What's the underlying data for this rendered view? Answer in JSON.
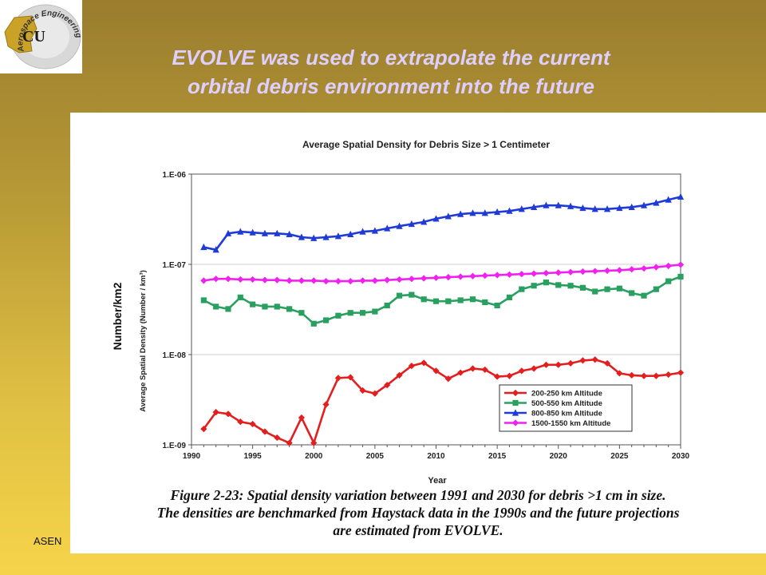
{
  "slide": {
    "title_line1": "EVOLVE was used to extrapolate the current",
    "title_line2": "orbital debris environment into the future",
    "footer_text": "ASEN",
    "logo_text": "Aerospace Engineering",
    "logo_monogram": "CU",
    "overlay_ylabel": "Number/km2"
  },
  "caption": {
    "line1": "Figure 2-23:  Spatial density variation between 1991 and 2030 for debris >1 cm in size.",
    "line2": "The densities are benchmarked from Haystack data in the 1990s and the future projections",
    "line3": "are estimated from EVOLVE."
  },
  "chart_data": {
    "type": "line",
    "title": "Average Spatial Density for Debris Size > 1 Centimeter",
    "xlabel": "Year",
    "ylabel": "Average Spatial Density (Number / km³)",
    "xlim": [
      1990,
      2030
    ],
    "ylim": [
      1e-09,
      1e-06
    ],
    "yscale": "log",
    "xticks": [
      1990,
      1995,
      2000,
      2005,
      2010,
      2015,
      2020,
      2025,
      2030
    ],
    "xtick_labels": [
      "1990",
      "1995",
      "2000",
      "2005",
      "2010",
      "2015",
      "2020",
      "2025",
      "2030"
    ],
    "yticks": [
      1e-09,
      1e-08,
      1e-07,
      1e-06
    ],
    "ytick_labels": [
      "1.E-09",
      "1.E-08",
      "1.E-07",
      "1.E-06"
    ],
    "legend_position": "bottom-right",
    "x": [
      1991,
      1992,
      1993,
      1994,
      1995,
      1996,
      1997,
      1998,
      1999,
      2000,
      2001,
      2002,
      2003,
      2004,
      2005,
      2006,
      2007,
      2008,
      2009,
      2010,
      2011,
      2012,
      2013,
      2014,
      2015,
      2016,
      2017,
      2018,
      2019,
      2020,
      2021,
      2022,
      2023,
      2024,
      2025,
      2026,
      2027,
      2028,
      2029,
      2030
    ],
    "series": [
      {
        "name": "200-250 km Altitude",
        "color": "#e41e1e",
        "marker": "diamond",
        "values": [
          1.5e-09,
          2.3e-09,
          2.2e-09,
          1.8e-09,
          1.7e-09,
          1.4e-09,
          1.2e-09,
          1.05e-09,
          2e-09,
          1.05e-09,
          2.8e-09,
          5.5e-09,
          5.6e-09,
          4e-09,
          3.7e-09,
          4.6e-09,
          5.9e-09,
          7.5e-09,
          8.1e-09,
          6.6e-09,
          5.4e-09,
          6.3e-09,
          7e-09,
          6.8e-09,
          5.7e-09,
          5.8e-09,
          6.6e-09,
          7e-09,
          7.7e-09,
          7.7e-09,
          8e-09,
          8.6e-09,
          8.8e-09,
          8e-09,
          6.2e-09,
          5.9e-09,
          5.8e-09,
          5.8e-09,
          6e-09,
          6.3e-09
        ]
      },
      {
        "name": "500-550 km Altitude",
        "color": "#2aa060",
        "marker": "square",
        "values": [
          4e-08,
          3.4e-08,
          3.2e-08,
          4.3e-08,
          3.6e-08,
          3.4e-08,
          3.4e-08,
          3.2e-08,
          2.9e-08,
          2.2e-08,
          2.4e-08,
          2.7e-08,
          2.9e-08,
          2.9e-08,
          3e-08,
          3.5e-08,
          4.5e-08,
          4.6e-08,
          4.1e-08,
          3.9e-08,
          3.9e-08,
          4e-08,
          4.1e-08,
          3.8e-08,
          3.5e-08,
          4.3e-08,
          5.3e-08,
          5.8e-08,
          6.3e-08,
          5.9e-08,
          5.8e-08,
          5.5e-08,
          5e-08,
          5.3e-08,
          5.4e-08,
          4.8e-08,
          4.5e-08,
          5.3e-08,
          6.5e-08,
          7.3e-08
        ]
      },
      {
        "name": "800-850 km Altitude",
        "color": "#1f3bd6",
        "marker": "triangle",
        "values": [
          1.55e-07,
          1.45e-07,
          2.2e-07,
          2.3e-07,
          2.25e-07,
          2.2e-07,
          2.2e-07,
          2.15e-07,
          2e-07,
          1.95e-07,
          2e-07,
          2.05e-07,
          2.15e-07,
          2.3e-07,
          2.35e-07,
          2.5e-07,
          2.65e-07,
          2.8e-07,
          2.95e-07,
          3.2e-07,
          3.4e-07,
          3.6e-07,
          3.7e-07,
          3.7e-07,
          3.8e-07,
          3.9e-07,
          4.1e-07,
          4.3e-07,
          4.5e-07,
          4.5e-07,
          4.4e-07,
          4.2e-07,
          4.1e-07,
          4.1e-07,
          4.2e-07,
          4.3e-07,
          4.5e-07,
          4.8e-07,
          5.2e-07,
          5.6e-07
        ]
      },
      {
        "name": "1500-1550 km Altitude",
        "color": "#f020f0",
        "marker": "diamond",
        "values": [
          6.6e-08,
          6.9e-08,
          6.9e-08,
          6.8e-08,
          6.8e-08,
          6.7e-08,
          6.7e-08,
          6.6e-08,
          6.6e-08,
          6.6e-08,
          6.5e-08,
          6.5e-08,
          6.5e-08,
          6.6e-08,
          6.6e-08,
          6.7e-08,
          6.8e-08,
          6.9e-08,
          7e-08,
          7.1e-08,
          7.2e-08,
          7.3e-08,
          7.4e-08,
          7.5e-08,
          7.6e-08,
          7.7e-08,
          7.8e-08,
          7.9e-08,
          8e-08,
          8.1e-08,
          8.2e-08,
          8.3e-08,
          8.4e-08,
          8.5e-08,
          8.6e-08,
          8.8e-08,
          9e-08,
          9.3e-08,
          9.6e-08,
          9.9e-08
        ]
      }
    ]
  }
}
